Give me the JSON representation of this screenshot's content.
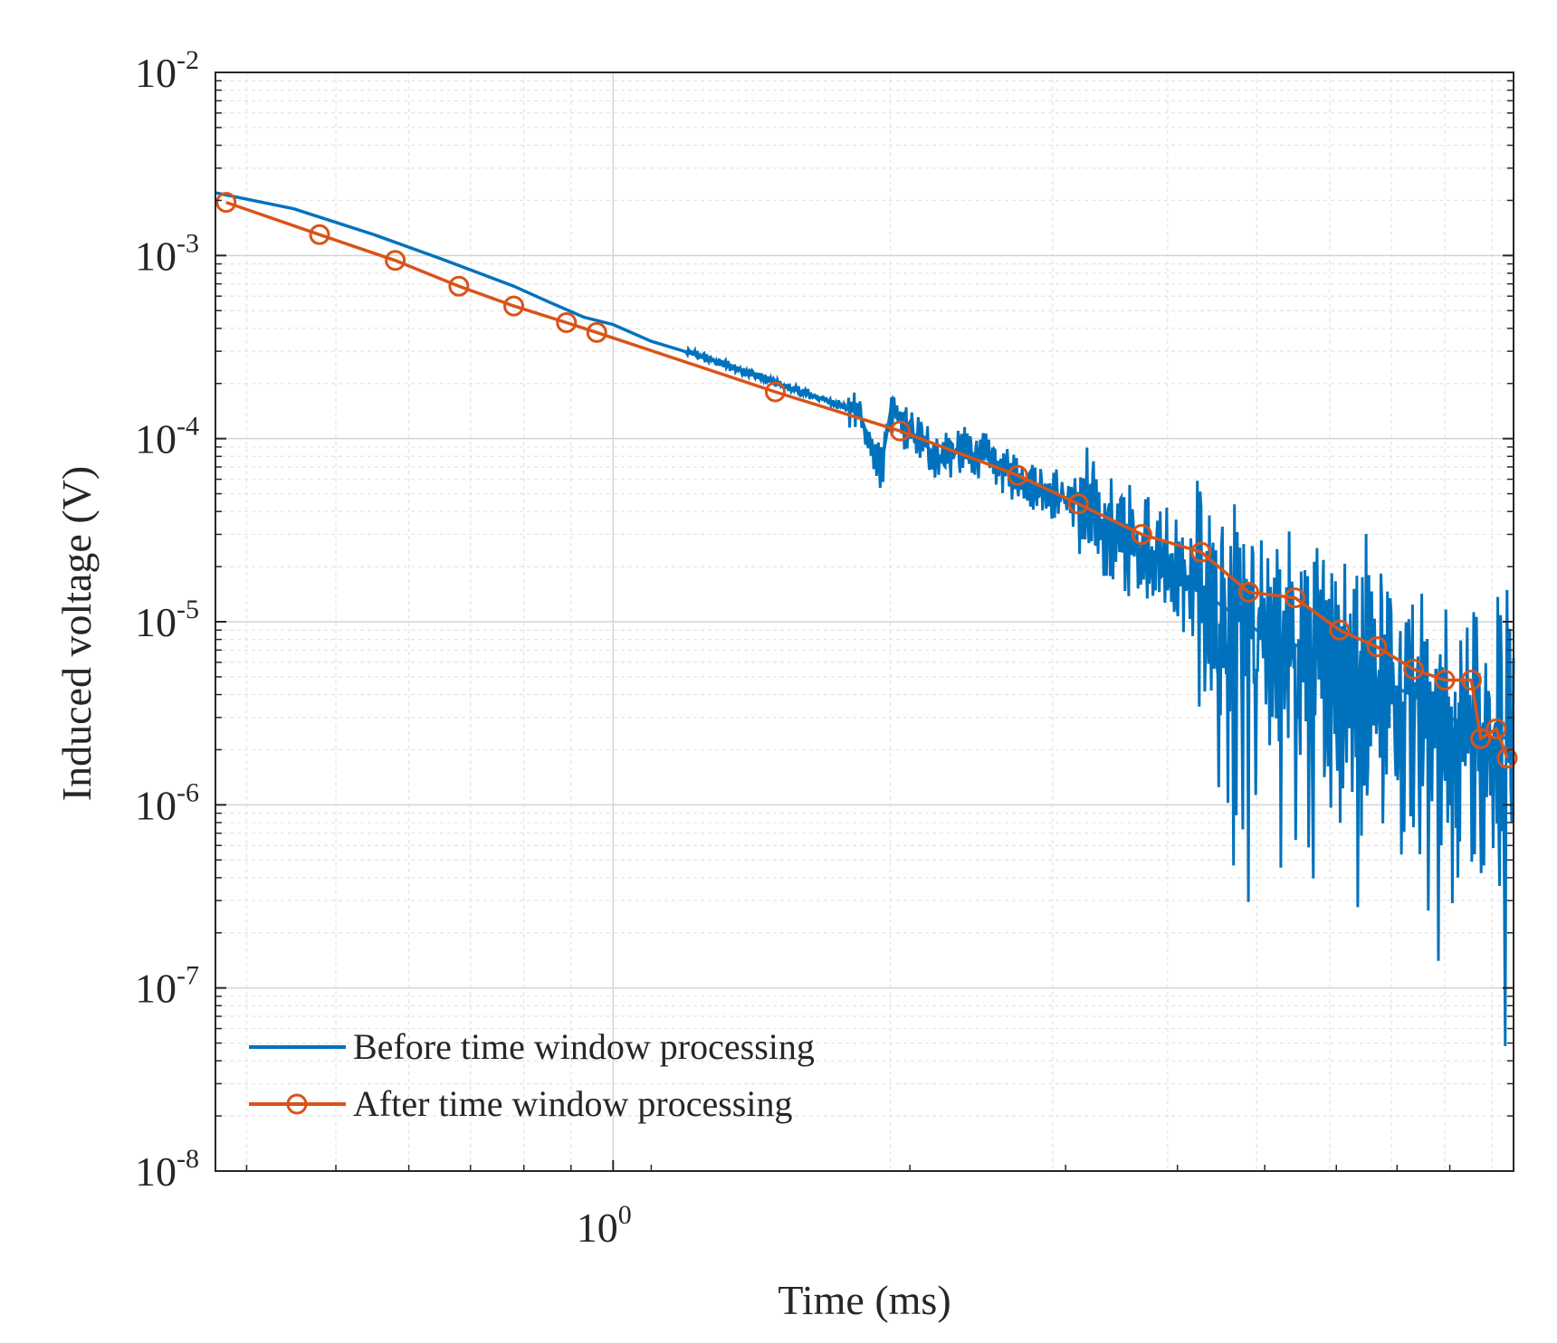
{
  "chart_data": {
    "type": "line",
    "xscale": "log",
    "yscale": "log",
    "title": "",
    "xlabel": "Time (ms)",
    "ylabel": "Induced voltage (V)",
    "xlim": [
      0.37,
      9.5
    ],
    "ylim": [
      1e-08,
      0.01
    ],
    "grid": true,
    "minor_grid": true,
    "x_ticks": [
      {
        "value": 1,
        "base": "10",
        "exp": "0"
      }
    ],
    "y_ticks": [
      {
        "value": 0.01,
        "base": "10",
        "exp": "-2"
      },
      {
        "value": 0.001,
        "base": "10",
        "exp": "-3"
      },
      {
        "value": 0.0001,
        "base": "10",
        "exp": "-4"
      },
      {
        "value": 1e-05,
        "base": "10",
        "exp": "-5"
      },
      {
        "value": 1e-06,
        "base": "10",
        "exp": "-6"
      },
      {
        "value": 1e-07,
        "base": "10",
        "exp": "-7"
      },
      {
        "value": 1e-08,
        "base": "10",
        "exp": "-8"
      }
    ],
    "legend_position": "bottom-left",
    "series": [
      {
        "name": "Before time window processing",
        "color": "#0072BD",
        "marker": "none",
        "description": "Raw induced voltage: smooth power-law decay until ~1.8 ms, then increasingly noisy oscillations; noise floor ~1e-5 V with spikes down to ~2e-8 V after ~4.5 ms.",
        "points": [
          [
            0.37,
            0.0022
          ],
          [
            0.45,
            0.0018
          ],
          [
            0.55,
            0.0013
          ],
          [
            0.65,
            0.00096
          ],
          [
            0.78,
            0.00068
          ],
          [
            0.85,
            0.00056
          ],
          [
            0.93,
            0.00046
          ],
          [
            1.0,
            0.00042
          ],
          [
            1.1,
            0.00034
          ],
          [
            1.25,
            0.00028
          ],
          [
            1.4,
            0.00023
          ],
          [
            1.55,
            0.00019
          ],
          [
            1.75,
            0.000155
          ],
          [
            1.85,
            0.00014
          ],
          [
            1.95,
            6.5e-05
          ],
          [
            2.0,
            0.00014
          ],
          [
            2.1,
            0.00011
          ],
          [
            2.25,
            8e-05
          ],
          [
            2.4,
            8.5e-05
          ],
          [
            2.55,
            8e-05
          ],
          [
            2.7,
            6.5e-05
          ],
          [
            3.0,
            5e-05
          ],
          [
            3.2,
            4.5e-05
          ],
          [
            3.4,
            3.5e-05
          ],
          [
            3.6,
            2.8e-05
          ],
          [
            3.8,
            2.5e-05
          ],
          [
            4.0,
            2e-05
          ],
          [
            4.3,
            1.5e-05
          ],
          [
            4.5,
            1.3e-05
          ],
          [
            5.0,
            9e-06
          ],
          [
            5.5,
            7.5e-06
          ],
          [
            6.0,
            6e-06
          ],
          [
            6.5,
            5e-06
          ],
          [
            7.0,
            4.5e-06
          ],
          [
            7.5,
            3.8e-06
          ],
          [
            8.0,
            3e-06
          ],
          [
            8.5,
            2.8e-06
          ],
          [
            9.0,
            2.5e-06
          ],
          [
            9.5,
            2.2e-06
          ]
        ]
      },
      {
        "name": "After time window processing",
        "color": "#D95319",
        "marker": "circle",
        "points": [
          [
            0.38,
            0.00195
          ],
          [
            0.48,
            0.0013
          ],
          [
            0.58,
            0.00094
          ],
          [
            0.68,
            0.00068
          ],
          [
            0.78,
            0.00053
          ],
          [
            0.89,
            0.00043
          ],
          [
            0.96,
            0.00038
          ],
          [
            1.5,
            0.00018
          ],
          [
            2.05,
            0.00011
          ],
          [
            2.75,
            6.3e-05
          ],
          [
            3.2,
            4.4e-05
          ],
          [
            3.75,
            3e-05
          ],
          [
            4.35,
            2.4e-05
          ],
          [
            4.9,
            1.45e-05
          ],
          [
            5.5,
            1.35e-05
          ],
          [
            6.15,
            9e-06
          ],
          [
            6.75,
            7.3e-06
          ],
          [
            7.4,
            5.5e-06
          ],
          [
            8.0,
            4.8e-06
          ],
          [
            8.55,
            4.8e-06
          ],
          [
            8.75,
            2.3e-06
          ],
          [
            9.1,
            2.6e-06
          ],
          [
            9.35,
            1.8e-06
          ]
        ]
      }
    ]
  }
}
